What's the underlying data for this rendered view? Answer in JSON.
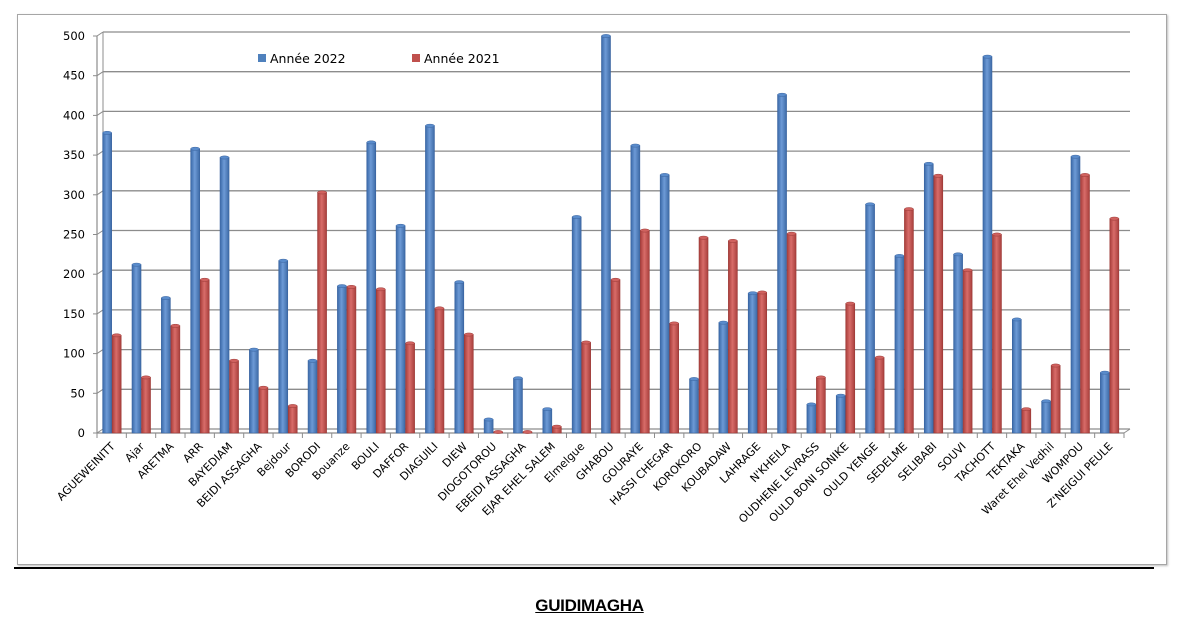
{
  "page_title": "GUIDIMAGHA",
  "chart_data": {
    "type": "bar",
    "title": "",
    "xlabel": "",
    "ylabel": "",
    "ylim": [
      0,
      500
    ],
    "yticks": [
      0,
      50,
      100,
      150,
      200,
      250,
      300,
      350,
      400,
      450,
      500
    ],
    "grid": true,
    "legend_position": "top",
    "categories": [
      "AGUEWEINITT",
      "Ajar",
      "ARETMA",
      "ARR",
      "BAYEDIAM",
      "BEIDI ASSAGHA",
      "Bejdour",
      "BORODI",
      "Bouanze",
      "BOULI",
      "DAFFOR",
      "DIAGUILI",
      "DIEW",
      "DIOGOTOROU",
      "EBEIDI ASSAGHA",
      "EJAR EHEL SALEM",
      "Elmelgue",
      "GHABOU",
      "GOURAYE",
      "HASSI CHEGAR",
      "KOROKORO",
      "KOUBADAW",
      "LAHRAGE",
      "N'KHEILA",
      "OUDHENE LEVRASS",
      "OULD BONI SONIKE",
      "OULD YENGE",
      "SEDELME",
      "SELIBABI",
      "SOUVI",
      "TACHOTT",
      "TEKTAKA",
      "Waret Ehel Vedhil",
      "WOMPOU",
      "Z'NEIGUI PEULE"
    ],
    "series": [
      {
        "name": "Année 2022",
        "color": "#4f81bd",
        "values": [
          378,
          212,
          170,
          358,
          347,
          105,
          217,
          91,
          185,
          366,
          261,
          387,
          190,
          17,
          69,
          30,
          272,
          500,
          362,
          325,
          68,
          139,
          176,
          426,
          36,
          47,
          288,
          223,
          339,
          225,
          474,
          143,
          40,
          348,
          76
        ]
      },
      {
        "name": "Année 2021",
        "color": "#c0504d",
        "values": [
          123,
          70,
          135,
          193,
          91,
          57,
          34,
          303,
          184,
          181,
          113,
          157,
          124,
          1,
          1,
          8,
          114,
          193,
          255,
          138,
          246,
          242,
          177,
          251,
          70,
          163,
          95,
          282,
          324,
          205,
          250,
          30,
          85,
          325,
          270
        ]
      }
    ]
  }
}
